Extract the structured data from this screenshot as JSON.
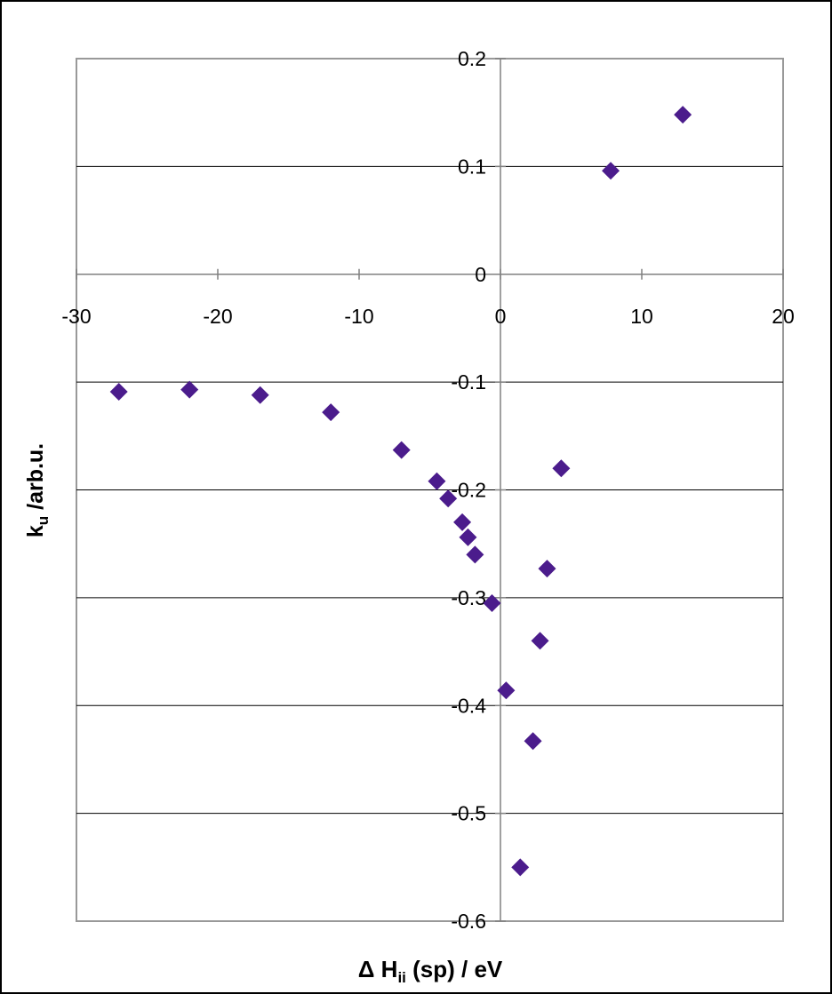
{
  "chart_data": {
    "type": "scatter",
    "title": "",
    "xlabel": {
      "prefix": "Δ H",
      "sub": "ii",
      "suffix": " (sp) / eV"
    },
    "ylabel": {
      "prefix": "k",
      "sub": "u",
      "suffix": " /arb.u."
    },
    "xlim": [
      -30,
      20
    ],
    "ylim": [
      -0.6,
      0.2
    ],
    "xticks": [
      -30,
      -20,
      -10,
      0,
      10,
      20
    ],
    "xtick_labels": [
      "-30",
      "-20",
      "-10",
      "0",
      "10",
      "20"
    ],
    "yticks": [
      -0.6,
      -0.5,
      -0.4,
      -0.3,
      -0.2,
      -0.1,
      0,
      0.1,
      0.2
    ],
    "ytick_labels": [
      "-0.6",
      "-0.5",
      "-0.4",
      "-0.3",
      "-0.2",
      "-0.1",
      "0",
      "0.1",
      "0.2"
    ],
    "grid": "horizontal",
    "legend": "none",
    "series": [
      {
        "color": "#4B1C8C",
        "marker": "diamond",
        "points": [
          {
            "x": -27.0,
            "y": -0.109
          },
          {
            "x": -22.0,
            "y": -0.107
          },
          {
            "x": -17.0,
            "y": -0.112
          },
          {
            "x": -12.0,
            "y": -0.128
          },
          {
            "x": -7.0,
            "y": -0.163
          },
          {
            "x": -4.5,
            "y": -0.192
          },
          {
            "x": -3.7,
            "y": -0.208
          },
          {
            "x": -2.7,
            "y": -0.23
          },
          {
            "x": -2.3,
            "y": -0.244
          },
          {
            "x": -1.8,
            "y": -0.26
          },
          {
            "x": -0.6,
            "y": -0.305
          },
          {
            "x": 0.4,
            "y": -0.386
          },
          {
            "x": 1.4,
            "y": -0.55
          },
          {
            "x": 2.3,
            "y": -0.433
          },
          {
            "x": 2.8,
            "y": -0.34
          },
          {
            "x": 3.3,
            "y": -0.273
          },
          {
            "x": 4.3,
            "y": -0.18
          },
          {
            "x": 7.8,
            "y": 0.096
          },
          {
            "x": 12.9,
            "y": 0.148
          }
        ]
      }
    ]
  }
}
